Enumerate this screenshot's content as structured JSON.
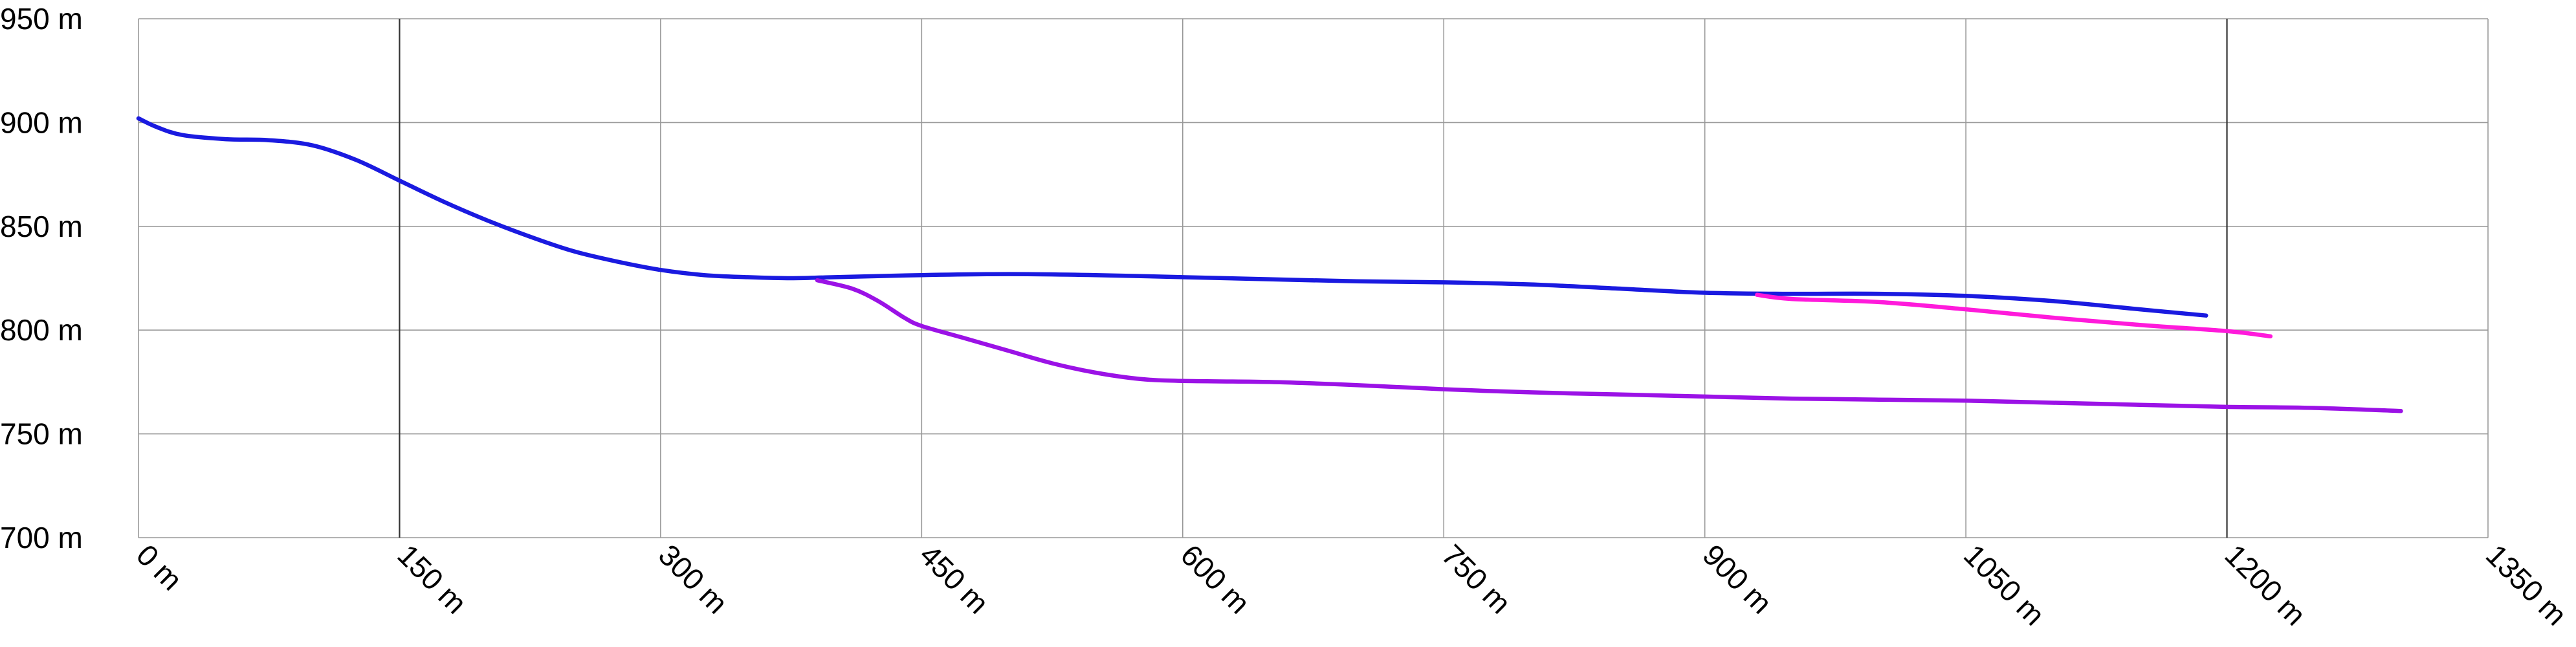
{
  "chart_data": {
    "type": "line",
    "title": "",
    "xlabel": "",
    "ylabel": "",
    "xlim": [
      0,
      1350
    ],
    "ylim": [
      700,
      950
    ],
    "x_ticks": [
      0,
      150,
      300,
      450,
      600,
      750,
      900,
      1050,
      1200,
      1350
    ],
    "x_tick_labels": [
      "0 m",
      "150 m",
      "300 m",
      "450 m",
      "600 m",
      "750 m",
      "900 m",
      "1050 m",
      "1200 m",
      "1350 m"
    ],
    "y_ticks": [
      700,
      750,
      800,
      850,
      900,
      950
    ],
    "y_tick_labels": [
      "700 m",
      "750 m",
      "800 m",
      "850 m",
      "900 m",
      "950 m"
    ],
    "grid": true,
    "emphasized_x_gridlines": [
      150,
      1200
    ],
    "legend": "none",
    "series": [
      {
        "color": "#1a1ae0",
        "x": [
          0,
          10,
          25,
          50,
          75,
          100,
          125,
          150,
          175,
          200,
          225,
          250,
          275,
          300,
          325,
          350,
          375,
          400,
          450,
          500,
          550,
          600,
          650,
          700,
          750,
          800,
          850,
          900,
          950,
          1000,
          1050,
          1100,
          1150,
          1188
        ],
        "y": [
          902,
          898,
          894,
          892,
          891.5,
          889,
          882,
          872,
          862,
          853,
          845,
          838,
          833,
          829,
          826.5,
          825.5,
          825,
          825.5,
          826.5,
          827,
          826.5,
          825.5,
          824.5,
          823.5,
          823,
          822,
          820,
          818,
          817.5,
          817.5,
          816.5,
          814,
          810,
          807
        ]
      },
      {
        "color": "#9b12e6",
        "x": [
          390,
          410,
          425,
          440,
          450,
          475,
          500,
          525,
          550,
          575,
          600,
          650,
          700,
          750,
          800,
          850,
          900,
          950,
          1000,
          1050,
          1100,
          1150,
          1200,
          1250,
          1300
        ],
        "y": [
          824,
          820,
          814,
          806,
          802,
          796,
          790,
          784,
          779.5,
          776.5,
          775.5,
          775,
          773.5,
          771.5,
          770,
          769,
          768,
          767,
          766.5,
          766,
          765,
          764,
          763,
          762.5,
          761
        ]
      },
      {
        "color": "#ff1adb",
        "x": [
          930,
          950,
          1000,
          1050,
          1100,
          1150,
          1200,
          1225
        ],
        "y": [
          817,
          815,
          813.5,
          810,
          806,
          802.5,
          799.5,
          797
        ]
      }
    ]
  }
}
